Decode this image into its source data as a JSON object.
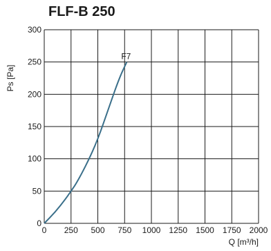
{
  "chart_data": {
    "type": "line",
    "title": "FLF-B 250",
    "xlabel": "Q [m³/h]",
    "ylabel": "Ps [Pa]",
    "xlim": [
      0,
      2000
    ],
    "ylim": [
      0,
      300
    ],
    "xticks": [
      0,
      250,
      500,
      750,
      1000,
      1250,
      1500,
      1750,
      2000
    ],
    "yticks": [
      0,
      50,
      100,
      150,
      200,
      250,
      300
    ],
    "grid": true,
    "series": [
      {
        "name": "F7",
        "color": "#3a6f8a",
        "x": [
          0,
          100,
          200,
          250,
          300,
          400,
          500,
          600,
          700,
          770
        ],
        "y": [
          0,
          17,
          38,
          50,
          62,
          93,
          130,
          178,
          225,
          250
        ]
      }
    ]
  }
}
